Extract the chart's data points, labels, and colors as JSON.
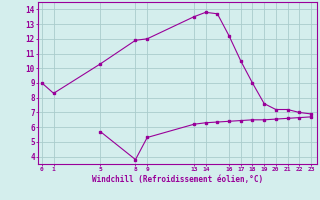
{
  "line1_x": [
    0,
    1,
    5,
    8,
    9,
    13,
    14,
    15,
    16,
    17,
    18,
    19,
    20,
    21,
    22,
    23
  ],
  "line1_y": [
    9.0,
    8.3,
    10.3,
    11.9,
    12.0,
    13.5,
    13.8,
    13.7,
    12.2,
    10.5,
    9.0,
    7.6,
    7.2,
    7.2,
    7.0,
    6.9
  ],
  "line2_x": [
    5,
    8,
    9,
    13,
    14,
    15,
    16,
    17,
    18,
    19,
    20,
    21,
    22,
    23
  ],
  "line2_y": [
    5.7,
    3.8,
    5.3,
    6.2,
    6.3,
    6.35,
    6.4,
    6.45,
    6.5,
    6.5,
    6.55,
    6.6,
    6.65,
    6.7
  ],
  "line_color": "#990099",
  "bg_color": "#d4eeed",
  "grid_color": "#aacccc",
  "xlabel": "Windchill (Refroidissement éolien,°C)",
  "xticks": [
    0,
    1,
    5,
    8,
    9,
    13,
    14,
    16,
    17,
    18,
    19,
    20,
    21,
    22,
    23
  ],
  "xtick_labels": [
    "0",
    "1",
    "5",
    "8",
    "9",
    "13",
    "14",
    "16",
    "17",
    "18",
    "19",
    "20",
    "21",
    "22",
    "23"
  ],
  "yticks": [
    4,
    5,
    6,
    7,
    8,
    9,
    10,
    11,
    12,
    13,
    14
  ],
  "ylim": [
    3.5,
    14.5
  ],
  "xlim": [
    -0.3,
    23.5
  ]
}
